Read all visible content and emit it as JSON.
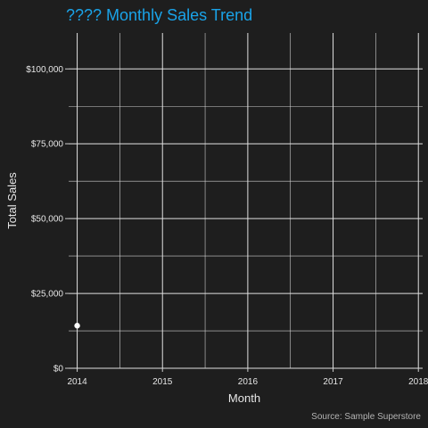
{
  "chart_data": {
    "type": "scatter",
    "title": "???? Monthly Sales Trend",
    "xlabel": "Month",
    "ylabel": "Total Sales",
    "caption": "Source: Sample Superstore",
    "x_ticks": [
      2014,
      2015,
      2016,
      2017,
      2018
    ],
    "x_tick_labels": [
      "2014",
      "2015",
      "2016",
      "2017",
      "2018"
    ],
    "y_ticks": [
      0,
      25000,
      50000,
      75000,
      100000
    ],
    "y_tick_labels": [
      "$0",
      "$25,000",
      "$50,000",
      "$75,000",
      "$100,000"
    ],
    "xlim": [
      2013.9,
      2018.05
    ],
    "ylim": [
      0,
      112000
    ],
    "grid": true,
    "points": [
      {
        "x": "2014-01",
        "xnum": 2014.0,
        "y": 14237
      }
    ],
    "colors": {
      "background": "#1e1e1e",
      "title": "#1aa3e8",
      "point": "#ffffff"
    }
  }
}
